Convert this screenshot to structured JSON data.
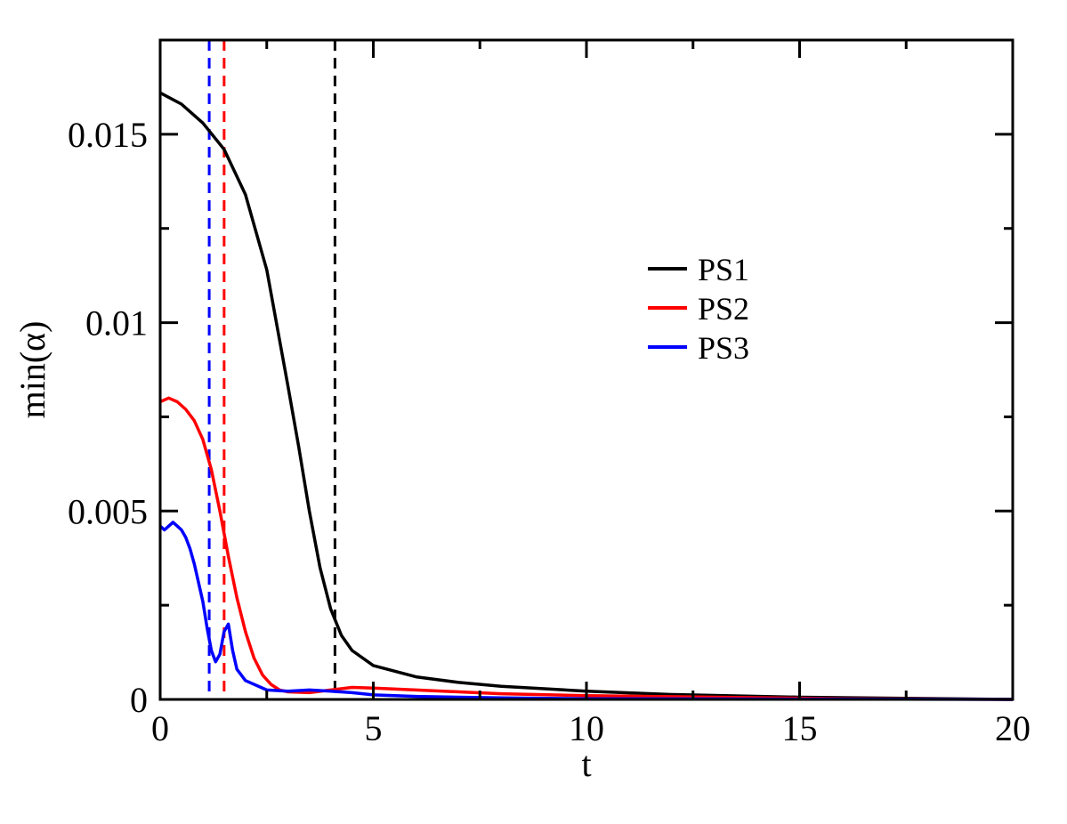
{
  "chart_data": {
    "type": "line",
    "title": "",
    "xlabel": "t",
    "ylabel": "min(α)",
    "xlim": [
      0,
      20
    ],
    "ylim": [
      0,
      0.0175
    ],
    "grid": false,
    "legend_position": "center-right",
    "x_ticks": [
      {
        "value": 0,
        "label": "0"
      },
      {
        "value": 5,
        "label": "5"
      },
      {
        "value": 10,
        "label": "10"
      },
      {
        "value": 15,
        "label": "15"
      },
      {
        "value": 20,
        "label": "20"
      }
    ],
    "y_ticks": [
      {
        "value": 0,
        "label": "0"
      },
      {
        "value": 0.005,
        "label": "0.005"
      },
      {
        "value": 0.01,
        "label": "0.01"
      },
      {
        "value": 0.015,
        "label": "0.015"
      }
    ],
    "series": [
      {
        "name": "PS1",
        "color": "#000000",
        "x": [
          0,
          0.5,
          1.0,
          1.5,
          2.0,
          2.5,
          3.0,
          3.25,
          3.5,
          3.75,
          4.0,
          4.25,
          4.5,
          5.0,
          6.0,
          7.0,
          8.0,
          10.0,
          12.0,
          15.0,
          20.0
        ],
        "y": [
          0.0161,
          0.0158,
          0.0153,
          0.0146,
          0.0134,
          0.0114,
          0.0083,
          0.0067,
          0.005,
          0.0035,
          0.0024,
          0.0017,
          0.0013,
          0.0009,
          0.0006,
          0.00045,
          0.00035,
          0.00022,
          0.00013,
          6e-05,
          0.0
        ]
      },
      {
        "name": "PS2",
        "color": "#ff0000",
        "x": [
          0,
          0.2,
          0.4,
          0.6,
          0.8,
          1.0,
          1.2,
          1.4,
          1.6,
          1.8,
          2.0,
          2.2,
          2.4,
          2.6,
          2.8,
          3.0,
          3.5,
          4.0,
          4.5,
          5.0,
          6.0,
          7.0,
          8.0,
          10.0,
          13.0,
          16.0,
          20.0
        ],
        "y": [
          0.0079,
          0.008,
          0.0079,
          0.0077,
          0.0074,
          0.0069,
          0.0061,
          0.005,
          0.0038,
          0.0027,
          0.0018,
          0.0011,
          0.00065,
          0.0004,
          0.00025,
          0.0002,
          0.00018,
          0.00025,
          0.00032,
          0.0003,
          0.00025,
          0.0002,
          0.00015,
          0.0001,
          6e-05,
          2e-05,
          0.0
        ]
      },
      {
        "name": "PS3",
        "color": "#0000ff",
        "x": [
          0,
          0.1,
          0.2,
          0.3,
          0.4,
          0.5,
          0.6,
          0.7,
          0.8,
          0.9,
          1.0,
          1.1,
          1.2,
          1.3,
          1.4,
          1.5,
          1.6,
          1.7,
          1.8,
          2.0,
          2.5,
          3.0,
          3.5,
          4.0,
          4.5,
          5.0,
          6.0,
          8.0,
          10.0,
          15.0,
          20.0
        ],
        "y": [
          0.0046,
          0.0045,
          0.0046,
          0.0047,
          0.0046,
          0.0045,
          0.0043,
          0.004,
          0.0036,
          0.0031,
          0.0026,
          0.0019,
          0.0013,
          0.001,
          0.0012,
          0.0018,
          0.002,
          0.0013,
          0.0008,
          0.0005,
          0.00025,
          0.00022,
          0.00025,
          0.00022,
          0.00018,
          0.00012,
          8e-05,
          4e-05,
          2e-05,
          1e-05,
          0.0
        ]
      }
    ],
    "vertical_lines": [
      {
        "x": 1.15,
        "color": "#0000ff",
        "style": "dashed"
      },
      {
        "x": 1.5,
        "color": "#ff0000",
        "style": "dashed"
      },
      {
        "x": 4.1,
        "color": "#000000",
        "style": "dashed"
      }
    ]
  }
}
